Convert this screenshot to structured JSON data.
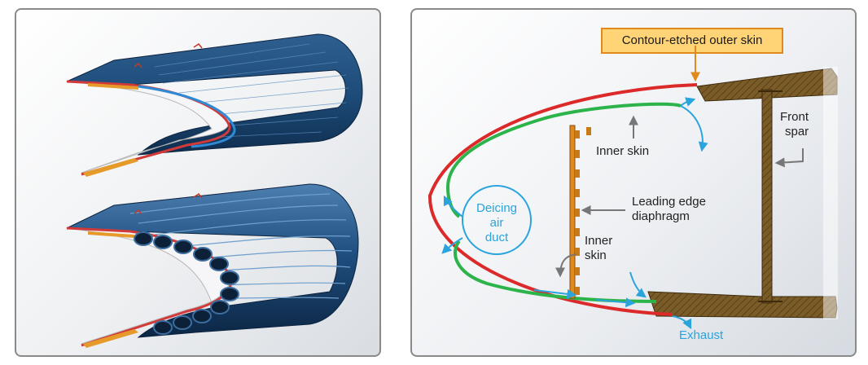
{
  "left_panel": {
    "illustrations": [
      "ribbed-outer-skin-icon",
      "tube-channel-skin-icon"
    ]
  },
  "right_panel": {
    "callout": "Contour-etched outer skin",
    "labels": {
      "inner_skin_top": "Inner skin",
      "front_spar_line1": "Front",
      "front_spar_line2": "spar",
      "leading_edge_line1": "Leading edge",
      "leading_edge_line2": "diaphragm",
      "inner_skin_bottom_line1": "Inner",
      "inner_skin_bottom_line2": "skin",
      "duct_line1": "Deicing",
      "duct_line2": "air",
      "duct_line3": "duct",
      "exhaust": "Exhaust"
    },
    "colors": {
      "outer_skin": "#dc2a2a",
      "inner_skin": "#2cb34a",
      "airflow": "#29a4dc",
      "spar": "#6e5224",
      "callout_fill": "#ffd477",
      "callout_border": "#e08a1e"
    }
  }
}
